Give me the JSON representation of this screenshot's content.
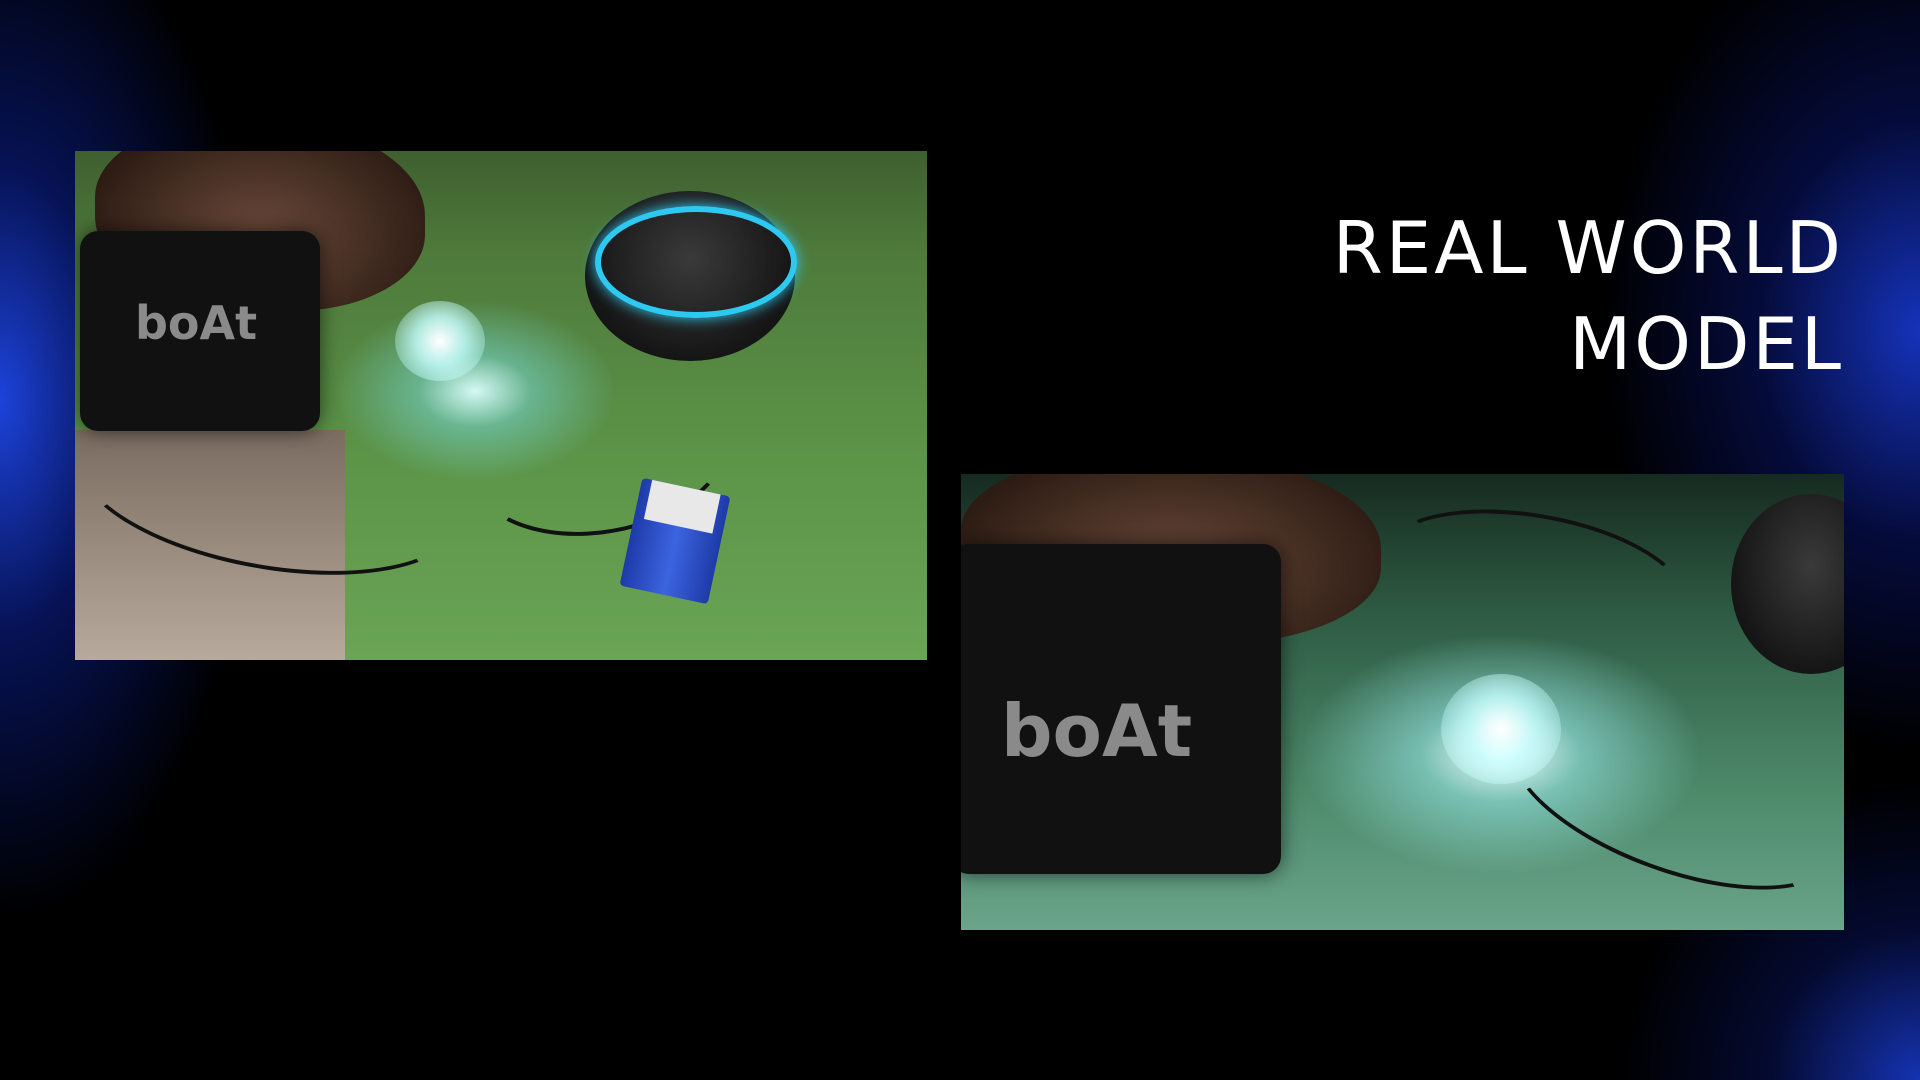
{
  "slide": {
    "title_line_1": "REAL WORLD",
    "title_line_2": "MODEL"
  },
  "photos": [
    {
      "name": "real-world-model-photo-1",
      "brand_text": "boAt"
    },
    {
      "name": "real-world-model-photo-2",
      "brand_text": "boAt"
    }
  ],
  "colors": {
    "background": "#000000",
    "glow": "#1e46e6",
    "title": "#ffffff",
    "echo_ring": "#2ec9f0"
  }
}
